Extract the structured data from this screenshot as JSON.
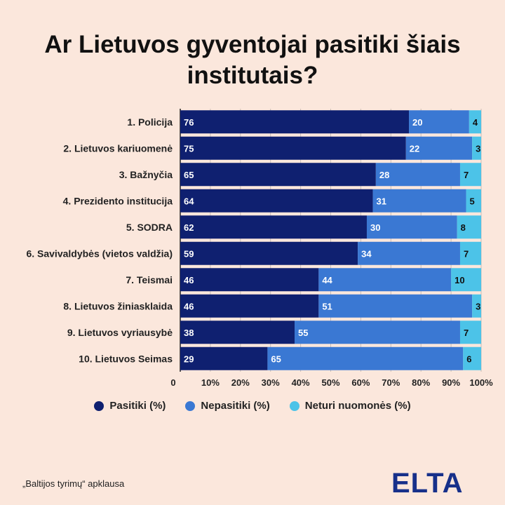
{
  "title": "Ar Lietuvos gyventojai pasitiki šiais institutais?",
  "source": "„Baltijos tyrimų“ apklausa",
  "logo_text": "ELTA",
  "legend": [
    {
      "label": "Pasitiki (%)",
      "color": "#0f2070"
    },
    {
      "label": "Nepasitiki (%)",
      "color": "#3a78d3"
    },
    {
      "label": "Neturi nuomonės (%)",
      "color": "#4cc3e8"
    }
  ],
  "chart_data": {
    "type": "bar",
    "orientation": "horizontal",
    "stacked": true,
    "categories": [
      "1. Policija",
      "2. Lietuvos kariuomenė",
      "3. Bažnyčia",
      "4. Prezidento institucija",
      "5. SODRA",
      "6. Savivaldybės (vietos valdžia)",
      "7. Teismai",
      "8. Lietuvos žiniasklaida",
      "9. Lietuvos vyriausybė",
      "10. Lietuvos Seimas"
    ],
    "series": [
      {
        "name": "Pasitiki (%)",
        "color": "#0f2070",
        "values": [
          76,
          75,
          65,
          64,
          62,
          59,
          46,
          46,
          38,
          29
        ]
      },
      {
        "name": "Nepasitiki (%)",
        "color": "#3a78d3",
        "values": [
          20,
          22,
          28,
          31,
          30,
          34,
          44,
          51,
          55,
          65
        ]
      },
      {
        "name": "Neturi nuomonės (%)",
        "color": "#4cc3e8",
        "values": [
          4,
          3,
          7,
          5,
          8,
          7,
          10,
          3,
          7,
          6
        ]
      }
    ],
    "xlim": [
      0,
      100
    ],
    "xticks": [
      "0",
      "10%",
      "20%",
      "30%",
      "40%",
      "50%",
      "60%",
      "70%",
      "80%",
      "90%",
      "100%"
    ],
    "grid": true,
    "legend_position": "bottom"
  }
}
